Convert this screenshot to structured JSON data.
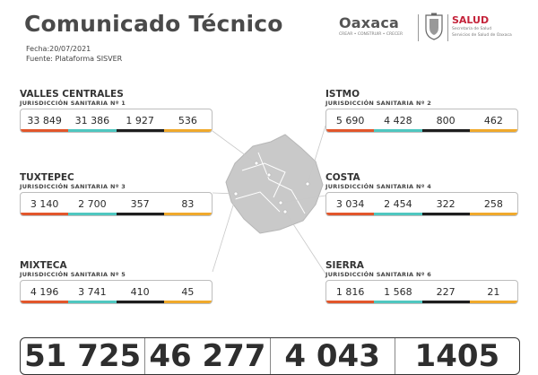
{
  "header": {
    "title": "Comunicado Técnico",
    "date_line": "Fecha:20/07/2021",
    "source_line": "Fuente: Plataforma SISVER"
  },
  "logos": {
    "oaxaca_word": "Oaxaca",
    "oaxaca_tagline": "CREAR • CONSTRUIR • CRECER",
    "salud_word": "SALUD",
    "salud_sub1": "Secretaría de Salud",
    "salud_sub2": "Servicios de Salud de Oaxaca"
  },
  "colors": {
    "accent_1": "#e2562b",
    "accent_2": "#4fc7c0",
    "accent_3": "#1e1e1e",
    "accent_4": "#f0a92b"
  },
  "regions": [
    {
      "name": "VALLES CENTRALES",
      "juris": "JURISDICCIÓN SANITARIA Nº 1",
      "values": [
        "33 849",
        "31 386",
        "1 927",
        "536"
      ]
    },
    {
      "name": "ISTMO",
      "juris": "JURISDICCIÓN SANITARIA Nº 2",
      "values": [
        "5 690",
        "4 428",
        "800",
        "462"
      ]
    },
    {
      "name": "TUXTEPEC",
      "juris": "JURISDICCIÓN SANITARIA Nº 3",
      "values": [
        "3 140",
        "2 700",
        "357",
        "83"
      ]
    },
    {
      "name": "COSTA",
      "juris": "JURISDICCIÓN SANITARIA Nº 4",
      "values": [
        "3 034",
        "2 454",
        "322",
        "258"
      ]
    },
    {
      "name": "MIXTECA",
      "juris": "JURISDICCIÓN SANITARIA Nº 5",
      "values": [
        "4 196",
        "3 741",
        "410",
        "45"
      ]
    },
    {
      "name": "SIERRA",
      "juris": "JURISDICCIÓN SANITARIA Nº 6",
      "values": [
        "1 816",
        "1 568",
        "227",
        "21"
      ]
    }
  ],
  "totals": [
    "51 725",
    "46 277",
    "4 043",
    "1405"
  ]
}
